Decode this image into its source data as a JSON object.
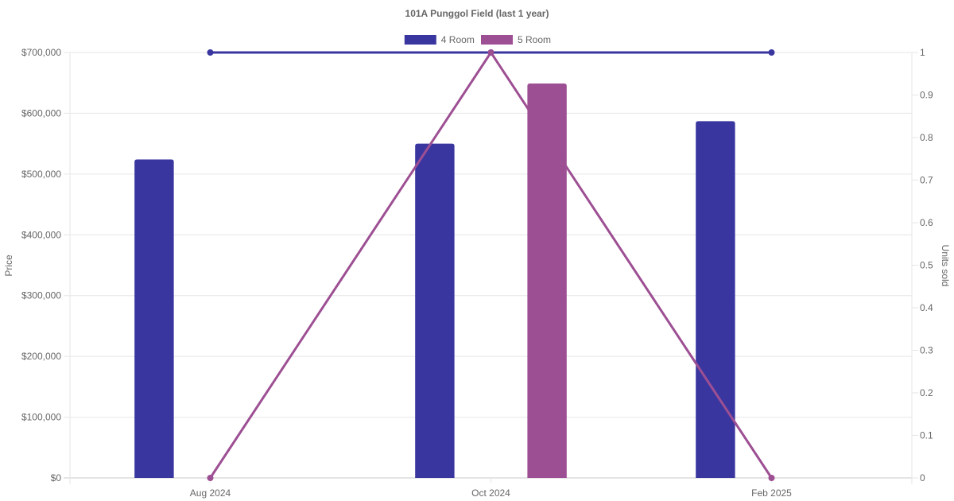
{
  "chart_data": {
    "type": "bar",
    "title": "101A Punggol Field (last 1 year)",
    "categories": [
      "Aug 2024",
      "Oct 2024",
      "Feb 2025"
    ],
    "ylabel": "Price",
    "y2label": "Units sold",
    "ylim": [
      0,
      700000
    ],
    "y2lim": [
      0,
      1
    ],
    "yticks": [
      "$0",
      "$100,000",
      "$200,000",
      "$300,000",
      "$400,000",
      "$500,000",
      "$600,000",
      "$700,000"
    ],
    "y2ticks": [
      "0",
      "0.1",
      "0.2",
      "0.3",
      "0.4",
      "0.5",
      "0.6",
      "0.7",
      "0.8",
      "0.9",
      "1"
    ],
    "legend_position": "top-center",
    "grid": true,
    "series": [
      {
        "name": "4 Room",
        "type": "bar",
        "axis": "left",
        "color": "#3a36a0",
        "values": [
          524000,
          550000,
          587000
        ]
      },
      {
        "name": "5 Room",
        "type": "bar",
        "axis": "left",
        "color": "#9d4f93",
        "values": [
          null,
          649000,
          null
        ]
      },
      {
        "name": "4 Room",
        "type": "line",
        "axis": "right",
        "color": "#3a36a0",
        "values": [
          1,
          1,
          1
        ]
      },
      {
        "name": "5 Room",
        "type": "line",
        "axis": "right",
        "color": "#9d4f93",
        "values": [
          0,
          1,
          0
        ]
      }
    ],
    "legend": [
      {
        "label": "4 Room",
        "color": "#3a36a0"
      },
      {
        "label": "5 Room",
        "color": "#9d4f93"
      }
    ]
  }
}
